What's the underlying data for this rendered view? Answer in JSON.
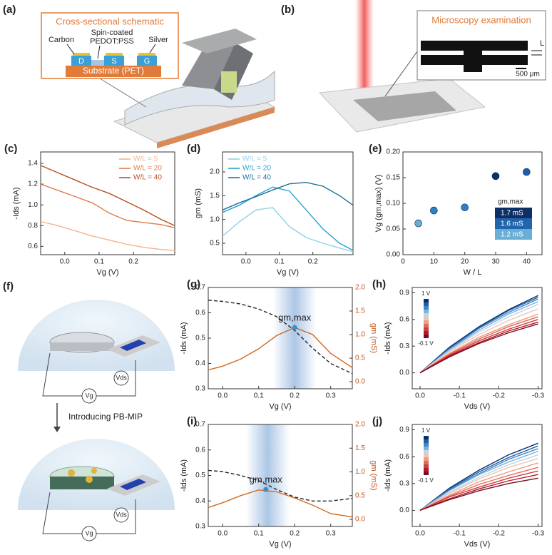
{
  "panels": {
    "a": {
      "label": "(a)",
      "title": "Cross-sectional schematic",
      "carbon": "Carbon",
      "pedot": [
        "Spin-coated",
        "PEDOT:PSS"
      ],
      "silver": "Silver",
      "electrodes": [
        "D",
        "S",
        "G"
      ],
      "substrate": "Substrate (PET)"
    },
    "b": {
      "label": "(b)",
      "title": "Microscopy examination",
      "length": "L",
      "scale": "500 μm"
    },
    "f": {
      "label": "(f)",
      "step": "Introducing PB-MIP",
      "top_vg": "Vg",
      "top_vds": "Vds",
      "bottom_vg": "Vg",
      "bottom_vds": "Vds"
    }
  },
  "chart_data": [
    {
      "type": "line",
      "label": "(c)",
      "xlabel": "Vg (V)",
      "ylabel": "-Ids (mA)",
      "x": [
        -0.07,
        -0.02,
        0.03,
        0.08,
        0.13,
        0.18,
        0.23,
        0.28,
        0.32
      ],
      "xlim": [
        -0.07,
        0.32
      ],
      "xticks": [
        {
          "value": 0,
          "label": "0.0"
        },
        0.1,
        0.2
      ],
      "ylim": [
        0.52,
        1.51
      ],
      "yticks": [
        0.6,
        0.8,
        {
          "value": 1,
          "label": "1.0"
        },
        1.2,
        1.4
      ],
      "legend": "upper right",
      "series": [
        {
          "name": "W/L = 5",
          "color": "#f2b38c",
          "values": [
            0.84,
            0.8,
            0.75,
            0.7,
            0.66,
            0.62,
            0.59,
            0.57,
            0.56
          ]
        },
        {
          "name": "W/L = 20",
          "color": "#e07b45",
          "values": [
            1.2,
            1.14,
            1.08,
            1.02,
            0.92,
            0.85,
            0.83,
            0.81,
            0.78
          ]
        },
        {
          "name": "W/L = 40",
          "color": "#b4501e",
          "values": [
            1.38,
            1.31,
            1.24,
            1.17,
            1.11,
            1.03,
            0.95,
            0.86,
            0.8
          ]
        }
      ]
    },
    {
      "type": "line",
      "label": "(d)",
      "xlabel": "Vg (V)",
      "ylabel": "gm (mS)",
      "x": [
        -0.07,
        -0.02,
        0.03,
        0.08,
        0.13,
        0.18,
        0.23,
        0.28,
        0.32
      ],
      "xlim": [
        -0.07,
        0.32
      ],
      "xticks": [
        {
          "value": 0,
          "label": "0.0"
        },
        0.1,
        0.2
      ],
      "ylim": [
        0.26,
        2.42
      ],
      "yticks": [
        0.5,
        {
          "value": 1,
          "label": "1.0"
        },
        1.5,
        {
          "value": 2,
          "label": "2.0"
        }
      ],
      "legend": "upper left",
      "series": [
        {
          "name": "W/L = 5",
          "color": "#8fd0ea",
          "values": [
            0.65,
            0.95,
            1.2,
            1.25,
            0.85,
            0.62,
            0.5,
            0.4,
            0.32
          ]
        },
        {
          "name": "W/L = 20",
          "color": "#2aa0d0",
          "values": [
            1.15,
            1.3,
            1.5,
            1.68,
            1.6,
            1.2,
            0.8,
            0.5,
            0.35
          ]
        },
        {
          "name": "W/L = 40",
          "color": "#1a6f9e",
          "values": [
            1.2,
            1.35,
            1.48,
            1.62,
            1.75,
            1.78,
            1.7,
            1.5,
            1.3
          ]
        }
      ]
    },
    {
      "type": "scatter",
      "label": "(e)",
      "xlabel": "W / L",
      "ylabel": "Vg (gm,max) (V)",
      "x": [
        5,
        10,
        20,
        30,
        40
      ],
      "values": [
        0.061,
        0.086,
        0.092,
        0.153,
        0.161
      ],
      "colors": [
        "#6aaed6",
        "#2f7fc1",
        "#2f7fc1",
        "#0d2f66",
        "#1f5fa8"
      ],
      "xlim": [
        0,
        45
      ],
      "xticks": [
        0,
        10,
        20,
        30,
        40
      ],
      "ylim": [
        0,
        0.2
      ],
      "yticks": [
        {
          "value": 0,
          "label": "0.00"
        },
        {
          "value": 0.05,
          "label": "0.05"
        },
        {
          "value": 0.1,
          "label": "0.10"
        },
        {
          "value": 0.15,
          "label": "0.15"
        },
        {
          "value": 0.2,
          "label": "0.20"
        }
      ],
      "legend": {
        "title": "gm,max",
        "entries": [
          {
            "label": "1.7 mS",
            "color": "#0d2f66"
          },
          {
            "label": "1.6 mS",
            "color": "#2166ac"
          },
          {
            "label": "1.2 mS",
            "color": "#6aaed6"
          }
        ]
      }
    },
    {
      "type": "line",
      "label": "(g)",
      "xlabel": "Vg (V)",
      "ylabel": "-Ids (mA)",
      "y2label": "gm (mS)",
      "x": [
        -0.04,
        0,
        0.05,
        0.1,
        0.15,
        0.2,
        0.25,
        0.3,
        0.36
      ],
      "xlim": [
        -0.04,
        0.36
      ],
      "xticks": [
        {
          "value": 0,
          "label": "0.0"
        },
        0.1,
        0.2,
        0.3
      ],
      "ylim": [
        0.3,
        0.7
      ],
      "yticks": [
        0.3,
        0.4,
        0.5,
        0.6,
        0.7
      ],
      "y2lim": [
        -0.15,
        2
      ],
      "y2ticks": [
        {
          "value": 0,
          "label": "0.0"
        },
        0.5,
        {
          "value": 1,
          "label": "1.0"
        },
        1.5,
        {
          "value": 2,
          "label": "2.0"
        }
      ],
      "highlight_band": [
        0.14,
        0.26
      ],
      "annotation": {
        "text": "gm,max",
        "x": 0.2,
        "y": 1.15
      },
      "series": [
        {
          "color": "#222222",
          "style": "dashed",
          "values": [
            0.65,
            0.645,
            0.635,
            0.615,
            0.585,
            0.53,
            0.46,
            0.4,
            0.36
          ]
        },
        {
          "color": "#d2691e",
          "axis": "y2",
          "values": [
            0.25,
            0.33,
            0.48,
            0.7,
            0.98,
            1.15,
            1.0,
            0.6,
            0.3
          ]
        }
      ]
    },
    {
      "type": "line",
      "label": "(h)",
      "xlabel": "Vds (V)",
      "ylabel": "-Ids (mA)",
      "x": [
        0,
        -0.075,
        -0.15,
        -0.225,
        -0.3
      ],
      "xlim": [
        0.02,
        -0.31
      ],
      "xticks": [
        {
          "value": 0,
          "label": "0.0"
        },
        -0.1,
        -0.2,
        -0.3
      ],
      "ylim": [
        -0.18,
        0.96
      ],
      "yticks": [
        {
          "value": 0,
          "label": "0.0"
        },
        0.3,
        0.6,
        0.9
      ],
      "colorbar": {
        "top": "1 V",
        "bottom": "-0.1 V"
      },
      "series": [
        {
          "color": "#0b2f6b",
          "values": [
            0,
            0.29,
            0.52,
            0.71,
            0.87
          ]
        },
        {
          "color": "#1f5fa8",
          "values": [
            0,
            0.28,
            0.51,
            0.7,
            0.85
          ]
        },
        {
          "color": "#3f86c2",
          "values": [
            0,
            0.27,
            0.5,
            0.68,
            0.83
          ]
        },
        {
          "color": "#7fb2d9",
          "values": [
            0,
            0.26,
            0.48,
            0.66,
            0.8
          ]
        },
        {
          "color": "#b9d6ea",
          "values": [
            0,
            0.25,
            0.46,
            0.63,
            0.77
          ]
        },
        {
          "color": "#f3c3b0",
          "values": [
            0,
            0.24,
            0.43,
            0.59,
            0.72
          ]
        },
        {
          "color": "#ef9a83",
          "values": [
            0,
            0.22,
            0.4,
            0.54,
            0.66
          ]
        },
        {
          "color": "#e06a5a",
          "values": [
            0,
            0.21,
            0.38,
            0.52,
            0.63
          ]
        },
        {
          "color": "#cc3f3f",
          "values": [
            0,
            0.2,
            0.36,
            0.49,
            0.6
          ]
        },
        {
          "color": "#b2182b",
          "values": [
            0,
            0.19,
            0.34,
            0.47,
            0.57
          ]
        },
        {
          "color": "#7a0c1e",
          "values": [
            0,
            0.18,
            0.33,
            0.45,
            0.55
          ]
        }
      ]
    },
    {
      "type": "line",
      "label": "(i)",
      "xlabel": "Vg (V)",
      "ylabel": "-Ids (mA)",
      "y2label": "gm (mS)",
      "x": [
        -0.04,
        0,
        0.05,
        0.1,
        0.15,
        0.2,
        0.25,
        0.3,
        0.36
      ],
      "xlim": [
        -0.04,
        0.36
      ],
      "xticks": [
        {
          "value": 0,
          "label": "0.0"
        },
        0.1,
        0.2,
        0.3
      ],
      "ylim": [
        0.3,
        0.7
      ],
      "yticks": [
        0.3,
        0.4,
        0.5,
        0.6,
        0.7
      ],
      "y2lim": [
        -0.15,
        2
      ],
      "y2ticks": [
        {
          "value": 0,
          "label": "0.0"
        },
        0.5,
        {
          "value": 1,
          "label": "1.0"
        },
        1.5,
        {
          "value": 2,
          "label": "2.0"
        }
      ],
      "highlight_band": [
        0.065,
        0.185
      ],
      "annotation": {
        "text": "gm,max",
        "x": 0.12,
        "y": 0.63
      },
      "series": [
        {
          "color": "#222222",
          "style": "dashed",
          "values": [
            0.52,
            0.515,
            0.5,
            0.48,
            0.445,
            0.415,
            0.4,
            0.4,
            0.41
          ]
        },
        {
          "color": "#d2691e",
          "axis": "y2",
          "values": [
            0.25,
            0.35,
            0.5,
            0.62,
            0.58,
            0.45,
            0.3,
            0.12,
            0.05
          ]
        }
      ]
    },
    {
      "type": "line",
      "label": "(j)",
      "xlabel": "Vds (V)",
      "ylabel": "-Ids (mA)",
      "x": [
        0,
        -0.075,
        -0.15,
        -0.225,
        -0.3
      ],
      "xlim": [
        0.02,
        -0.31
      ],
      "xticks": [
        {
          "value": 0,
          "label": "0.0"
        },
        -0.1,
        -0.2,
        -0.3
      ],
      "ylim": [
        -0.18,
        0.96
      ],
      "yticks": [
        {
          "value": 0,
          "label": "0.0"
        },
        0.3,
        0.6,
        0.9
      ],
      "colorbar": {
        "top": "1 V",
        "bottom": "-0.1 V"
      },
      "series": [
        {
          "color": "#0b2f6b",
          "values": [
            0,
            0.25,
            0.45,
            0.62,
            0.75
          ]
        },
        {
          "color": "#1f5fa8",
          "values": [
            0,
            0.24,
            0.43,
            0.59,
            0.72
          ]
        },
        {
          "color": "#3f86c2",
          "values": [
            0,
            0.23,
            0.41,
            0.57,
            0.69
          ]
        },
        {
          "color": "#7fb2d9",
          "values": [
            0,
            0.22,
            0.4,
            0.54,
            0.66
          ]
        },
        {
          "color": "#b9d6ea",
          "values": [
            0,
            0.2,
            0.37,
            0.51,
            0.62
          ]
        },
        {
          "color": "#f3c3b0",
          "values": [
            0,
            0.19,
            0.35,
            0.48,
            0.58
          ]
        },
        {
          "color": "#ef9a83",
          "values": [
            0,
            0.17,
            0.32,
            0.43,
            0.53
          ]
        },
        {
          "color": "#e06a5a",
          "values": [
            0,
            0.16,
            0.29,
            0.39,
            0.48
          ]
        },
        {
          "color": "#cc3f3f",
          "values": [
            0,
            0.15,
            0.26,
            0.36,
            0.44
          ]
        },
        {
          "color": "#b2182b",
          "values": [
            0,
            0.13,
            0.24,
            0.33,
            0.4
          ]
        },
        {
          "color": "#7a0c1e",
          "values": [
            0,
            0.12,
            0.22,
            0.3,
            0.36
          ]
        }
      ]
    }
  ]
}
